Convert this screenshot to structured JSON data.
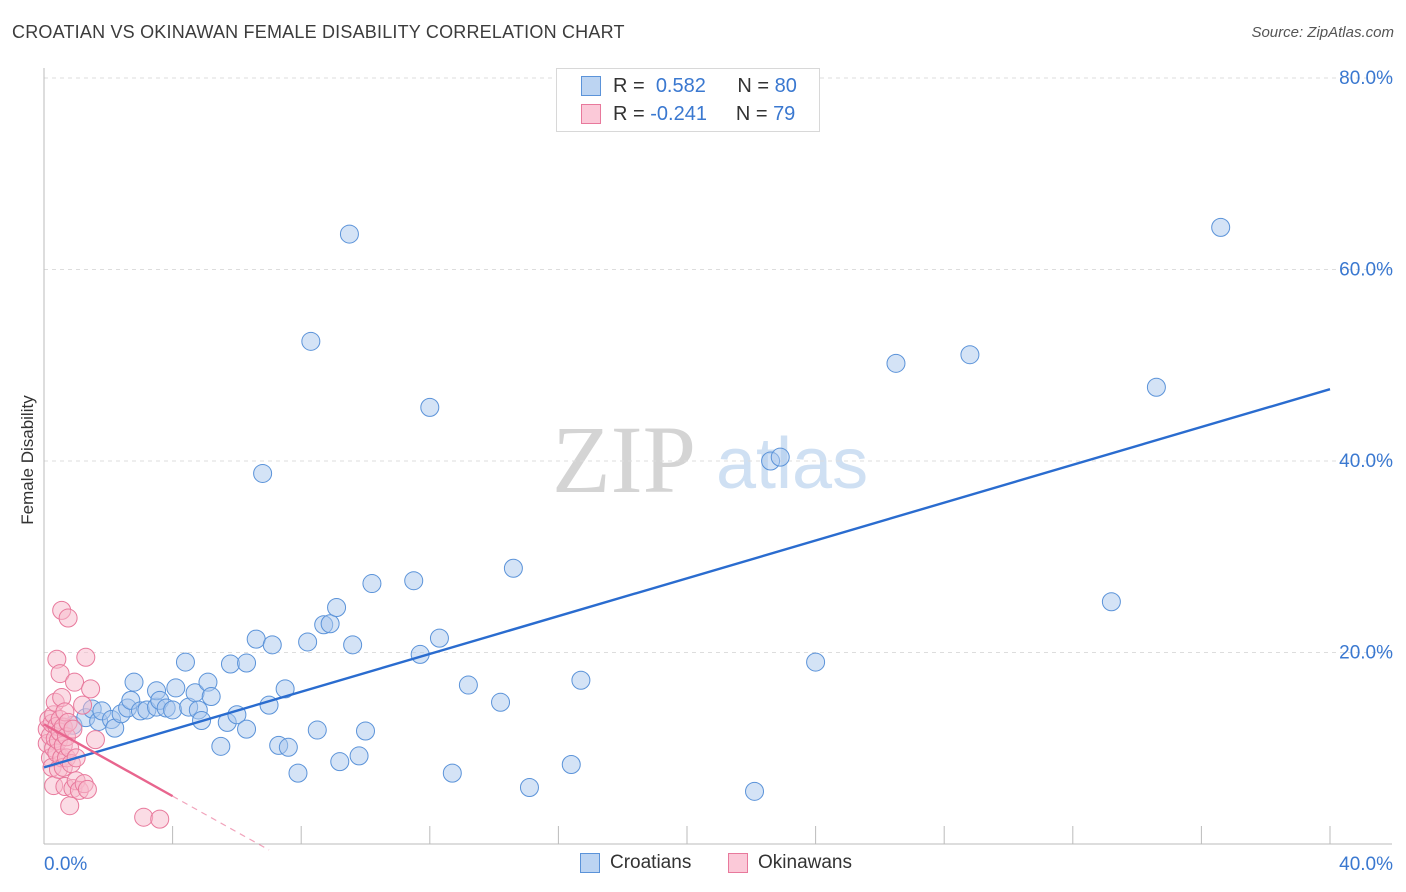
{
  "header": {
    "title": "CROATIAN VS OKINAWAN FEMALE DISABILITY CORRELATION CHART",
    "source": "Source: ZipAtlas.com"
  },
  "watermark": {
    "zip": "ZIP",
    "atlas": "atlas"
  },
  "legend": {
    "r_label": "R =",
    "n_label": "N =",
    "series": [
      {
        "name": "Croatians",
        "r": "0.582",
        "n": "80",
        "fill": "#a9c8ee",
        "stroke": "#5b93d9"
      },
      {
        "name": "Okinawans",
        "r": "-0.241",
        "n": "79",
        "fill": "#f8b9cc",
        "stroke": "#e8799c"
      }
    ]
  },
  "chart_data": {
    "type": "scatter",
    "title": "CROATIAN VS OKINAWAN FEMALE DISABILITY CORRELATION CHART",
    "xlabel": "",
    "ylabel": "Female Disability",
    "xlim": [
      0,
      40
    ],
    "ylim": [
      0,
      80
    ],
    "x_tick_labels": [
      "0.0%",
      "40.0%"
    ],
    "y_tick_labels": [
      "20.0%",
      "40.0%",
      "60.0%",
      "80.0%"
    ],
    "y_ticks": [
      20,
      40,
      60,
      80
    ],
    "grid": true,
    "series": [
      {
        "name": "Croatians",
        "color": "#5b93d9",
        "trend": {
          "x": [
            0,
            40
          ],
          "y": [
            8.0,
            47.5
          ],
          "color": "#2a6ccf"
        },
        "points": [
          [
            0.6,
            12.2
          ],
          [
            0.9,
            12.4
          ],
          [
            1.3,
            13.2
          ],
          [
            1.5,
            14.1
          ],
          [
            1.7,
            12.8
          ],
          [
            1.8,
            13.9
          ],
          [
            2.1,
            13.0
          ],
          [
            2.2,
            12.1
          ],
          [
            2.4,
            13.6
          ],
          [
            2.6,
            14.2
          ],
          [
            2.7,
            15.0
          ],
          [
            2.8,
            16.9
          ],
          [
            3.0,
            13.9
          ],
          [
            3.2,
            14.0
          ],
          [
            3.5,
            14.3
          ],
          [
            3.5,
            16.0
          ],
          [
            3.6,
            15.0
          ],
          [
            3.8,
            14.2
          ],
          [
            4.0,
            14.0
          ],
          [
            4.1,
            16.3
          ],
          [
            4.4,
            19.0
          ],
          [
            4.5,
            14.3
          ],
          [
            4.7,
            15.8
          ],
          [
            4.8,
            14.0
          ],
          [
            4.9,
            12.9
          ],
          [
            5.1,
            16.9
          ],
          [
            5.2,
            15.4
          ],
          [
            5.5,
            10.2
          ],
          [
            5.7,
            12.7
          ],
          [
            5.8,
            18.8
          ],
          [
            6.0,
            13.5
          ],
          [
            6.3,
            18.9
          ],
          [
            6.3,
            12.0
          ],
          [
            6.6,
            21.4
          ],
          [
            6.8,
            38.7
          ],
          [
            7.0,
            14.5
          ],
          [
            7.1,
            20.8
          ],
          [
            7.3,
            10.3
          ],
          [
            7.5,
            16.2
          ],
          [
            7.6,
            10.1
          ],
          [
            7.9,
            7.4
          ],
          [
            8.2,
            21.1
          ],
          [
            8.3,
            52.5
          ],
          [
            8.5,
            11.9
          ],
          [
            8.7,
            22.9
          ],
          [
            8.9,
            23.0
          ],
          [
            9.1,
            24.7
          ],
          [
            9.2,
            8.6
          ],
          [
            9.5,
            63.7
          ],
          [
            9.6,
            20.8
          ],
          [
            9.8,
            9.2
          ],
          [
            10.0,
            11.8
          ],
          [
            10.2,
            27.2
          ],
          [
            11.5,
            27.5
          ],
          [
            11.7,
            19.8
          ],
          [
            12.0,
            45.6
          ],
          [
            12.3,
            21.5
          ],
          [
            12.7,
            7.4
          ],
          [
            13.2,
            16.6
          ],
          [
            14.2,
            14.8
          ],
          [
            14.6,
            28.8
          ],
          [
            15.1,
            5.9
          ],
          [
            16.4,
            8.3
          ],
          [
            16.7,
            17.1
          ],
          [
            22.1,
            5.5
          ],
          [
            22.6,
            40.0
          ],
          [
            22.9,
            40.4
          ],
          [
            24.0,
            19.0
          ],
          [
            26.5,
            50.2
          ],
          [
            28.8,
            51.1
          ],
          [
            33.2,
            25.3
          ],
          [
            34.6,
            47.7
          ],
          [
            36.6,
            64.4
          ]
        ]
      },
      {
        "name": "Okinawans",
        "color": "#e8799c",
        "trend": {
          "x": [
            0,
            4.0
          ],
          "y": [
            12.5,
            5.0
          ],
          "color": "#e8658e",
          "dashed_extension_to_x": 7.0
        },
        "points": [
          [
            0.1,
            12.0
          ],
          [
            0.1,
            10.5
          ],
          [
            0.15,
            13.0
          ],
          [
            0.2,
            9.0
          ],
          [
            0.2,
            11.3
          ],
          [
            0.25,
            8.0
          ],
          [
            0.25,
            12.6
          ],
          [
            0.3,
            10.0
          ],
          [
            0.3,
            13.5
          ],
          [
            0.3,
            6.1
          ],
          [
            0.35,
            11.0
          ],
          [
            0.35,
            14.8
          ],
          [
            0.4,
            12.3
          ],
          [
            0.4,
            9.5
          ],
          [
            0.4,
            19.3
          ],
          [
            0.45,
            10.8
          ],
          [
            0.45,
            7.8
          ],
          [
            0.5,
            13.0
          ],
          [
            0.5,
            11.7
          ],
          [
            0.5,
            17.8
          ],
          [
            0.55,
            9.0
          ],
          [
            0.55,
            15.3
          ],
          [
            0.55,
            24.4
          ],
          [
            0.6,
            12.2
          ],
          [
            0.6,
            10.3
          ],
          [
            0.6,
            8.0
          ],
          [
            0.65,
            13.8
          ],
          [
            0.65,
            6.0
          ],
          [
            0.7,
            11.2
          ],
          [
            0.7,
            9.0
          ],
          [
            0.75,
            12.7
          ],
          [
            0.75,
            23.6
          ],
          [
            0.8,
            4.0
          ],
          [
            0.8,
            10.0
          ],
          [
            0.85,
            8.4
          ],
          [
            0.9,
            12.0
          ],
          [
            0.9,
            5.8
          ],
          [
            0.95,
            16.9
          ],
          [
            1.0,
            6.6
          ],
          [
            1.0,
            9.0
          ],
          [
            1.1,
            5.6
          ],
          [
            1.2,
            14.5
          ],
          [
            1.25,
            6.3
          ],
          [
            1.3,
            19.5
          ],
          [
            1.35,
            5.7
          ],
          [
            1.45,
            16.2
          ],
          [
            1.6,
            10.9
          ],
          [
            3.1,
            2.8
          ],
          [
            3.6,
            2.6
          ]
        ]
      }
    ]
  }
}
